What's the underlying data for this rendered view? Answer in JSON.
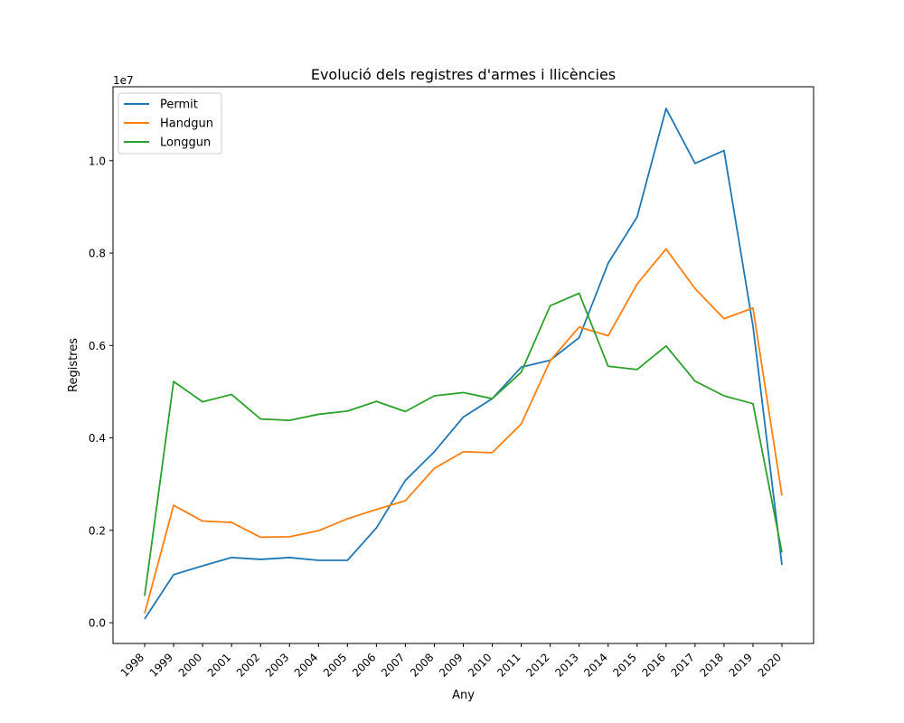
{
  "chart_data": {
    "type": "line",
    "title": "Evolució dels registres d'armes i llicències",
    "xlabel": "Any",
    "ylabel": "Registres",
    "y_offset_label": "1e7",
    "y_multiplier": 10000000,
    "categories": [
      "1998",
      "1999",
      "2000",
      "2001",
      "2002",
      "2003",
      "2004",
      "2005",
      "2006",
      "2007",
      "2008",
      "2009",
      "2010",
      "2011",
      "2012",
      "2013",
      "2014",
      "2015",
      "2016",
      "2017",
      "2018",
      "2019",
      "2020"
    ],
    "ylim": [
      -0.045,
      1.16
    ],
    "yticks": [
      0.0,
      0.2,
      0.4,
      0.6,
      0.8,
      1.0
    ],
    "ytick_labels": [
      "0.0",
      "0.2",
      "0.4",
      "0.6",
      "0.8",
      "1.0"
    ],
    "grid": false,
    "legend_position": "top-left",
    "series": [
      {
        "name": "Permit",
        "color": "#1f77b4",
        "values": [
          0.008,
          0.104,
          0.123,
          0.141,
          0.137,
          0.141,
          0.135,
          0.135,
          0.205,
          0.308,
          0.37,
          0.445,
          0.485,
          0.553,
          0.568,
          0.617,
          0.778,
          0.878,
          1.113,
          0.994,
          1.022,
          0.642,
          0.125
        ]
      },
      {
        "name": "Handgun",
        "color": "#ff7f0e",
        "values": [
          0.02,
          0.254,
          0.22,
          0.217,
          0.185,
          0.186,
          0.199,
          0.225,
          0.245,
          0.264,
          0.334,
          0.37,
          0.368,
          0.43,
          0.567,
          0.64,
          0.621,
          0.733,
          0.809,
          0.723,
          0.658,
          0.681,
          0.275
        ]
      },
      {
        "name": "Longgun",
        "color": "#2ca02c",
        "values": [
          0.058,
          0.522,
          0.478,
          0.494,
          0.441,
          0.438,
          0.451,
          0.458,
          0.479,
          0.457,
          0.491,
          0.498,
          0.485,
          0.542,
          0.686,
          0.713,
          0.555,
          0.548,
          0.599,
          0.523,
          0.491,
          0.474,
          0.152
        ]
      }
    ]
  }
}
